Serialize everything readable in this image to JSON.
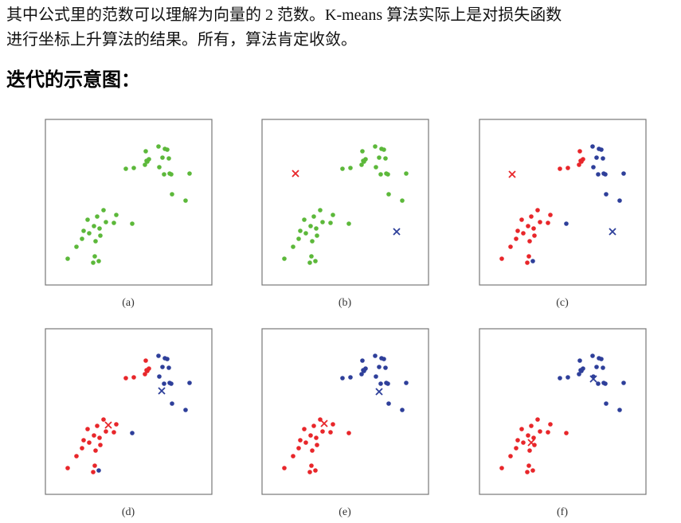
{
  "paragraph": {
    "lines": [
      "其中公式里的范数可以理解为向量的 2 范数。K-means 算法实际上是对损失函数",
      "进行坐标上升算法的结果。所有，算法肯定收敛。"
    ]
  },
  "heading": "迭代的示意图：",
  "figure": {
    "captions": [
      "(a)",
      "(b)",
      "(c)",
      "(d)",
      "(e)",
      "(f)"
    ]
  }
}
